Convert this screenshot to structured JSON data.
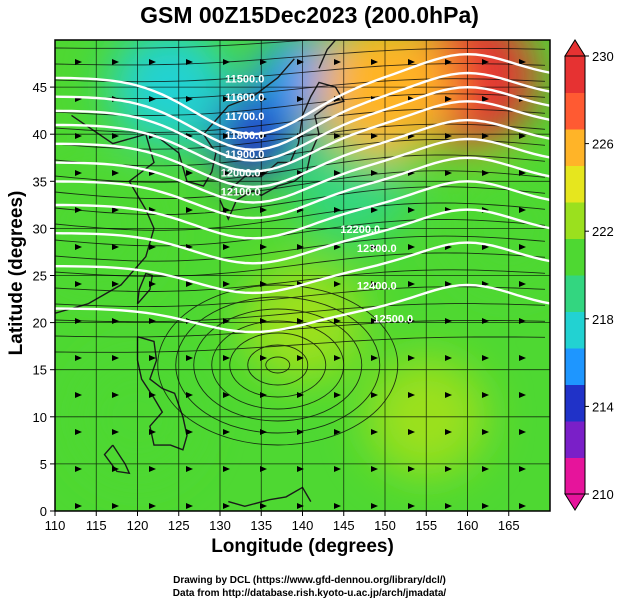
{
  "chart_data": {
    "type": "heatmap",
    "title": "GSM 00Z15Dec2023 (200.0hPa)",
    "xlabel": "Longitude (degrees)",
    "ylabel": "Latitude  (degrees)",
    "xlim": [
      110,
      170
    ],
    "ylim": [
      0,
      50
    ],
    "x_ticks": [
      110,
      115,
      120,
      125,
      130,
      135,
      140,
      145,
      150,
      155,
      160,
      165
    ],
    "y_ticks": [
      0,
      5,
      10,
      15,
      20,
      25,
      30,
      35,
      40,
      45
    ],
    "grid": true,
    "grid_spacing_degrees": 5,
    "colorbar": {
      "min": 210,
      "max": 230,
      "ticks": [
        210,
        214,
        218,
        222,
        226,
        230
      ],
      "colors": [
        "#e6149b",
        "#7a1fc8",
        "#2032c8",
        "#1e96ff",
        "#22d2d2",
        "#33d680",
        "#4ed832",
        "#9be01e",
        "#e6e61e",
        "#ffb428",
        "#ff5a32",
        "#e63232"
      ]
    },
    "field_description": "temperature (K) color shading with streamlines and white geopotential height contours",
    "contour_labels": [
      "11500.0",
      "11600.0",
      "11700.0",
      "11800.0",
      "11900.0",
      "12000.0",
      "12100.0",
      "12200.0",
      "12300.0",
      "12400.0",
      "12500.0"
    ],
    "temperature_points": [
      {
        "lon": 134,
        "lat": 40,
        "value": 214.5
      },
      {
        "lon": 124,
        "lat": 45,
        "value": 217
      },
      {
        "lon": 140,
        "lat": 46,
        "value": 216.5
      },
      {
        "lon": 146,
        "lat": 35,
        "value": 219
      },
      {
        "lon": 160,
        "lat": 46,
        "value": 228.5
      },
      {
        "lon": 150,
        "lat": 45,
        "value": 226
      },
      {
        "lon": 140,
        "lat": 20,
        "value": 222
      },
      {
        "lon": 120,
        "lat": 10,
        "value": 221.5
      },
      {
        "lon": 155,
        "lat": 10,
        "value": 222.5
      },
      {
        "lon": 115,
        "lat": 30,
        "value": 221
      },
      {
        "lon": 165,
        "lat": 30,
        "value": 220
      }
    ],
    "annotations": [
      "Drawing by DCL (https://www.gfd-dennou.org/library/dcl/)",
      "Data from http://database.rish.kyoto-u.ac.jp/arch/jmadata/"
    ]
  }
}
